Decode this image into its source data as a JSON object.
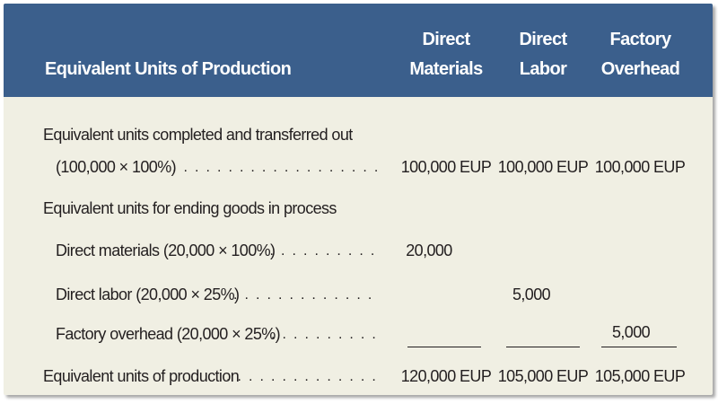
{
  "header": {
    "title": "Equivalent Units of Production",
    "columns": [
      {
        "line1": "Direct",
        "line2": "Materials"
      },
      {
        "line1": "Direct",
        "line2": "Labor"
      },
      {
        "line1": "Factory",
        "line2": "Overhead"
      }
    ]
  },
  "rows": {
    "completed_line1": "Equivalent units completed and transferred out",
    "completed_line2": "(100,000 × 100%)",
    "completed_values": [
      "100,000 EUP",
      "100,000 EUP",
      "100,000 EUP"
    ],
    "ending_heading": "Equivalent units for ending goods in process",
    "dm_label": "Direct materials (20,000 × 100%)",
    "dm_value": "20,000",
    "dl_label": "Direct labor (20,000 × 25%)",
    "dl_value": "5,000",
    "fo_label": "Factory overhead (20,000 × 25%)",
    "fo_value": "5,000",
    "total_label": "Equivalent units of production",
    "total_values": [
      "120,000 EUP",
      "105,000 EUP",
      "105,000 EUP"
    ]
  },
  "leader_dots": ". . . . . . . . . . . . . . . . . . . . . . . . . . . . . . . . . . . . . . . . . . . . . . . . . . . . . . . . . . . . ."
}
